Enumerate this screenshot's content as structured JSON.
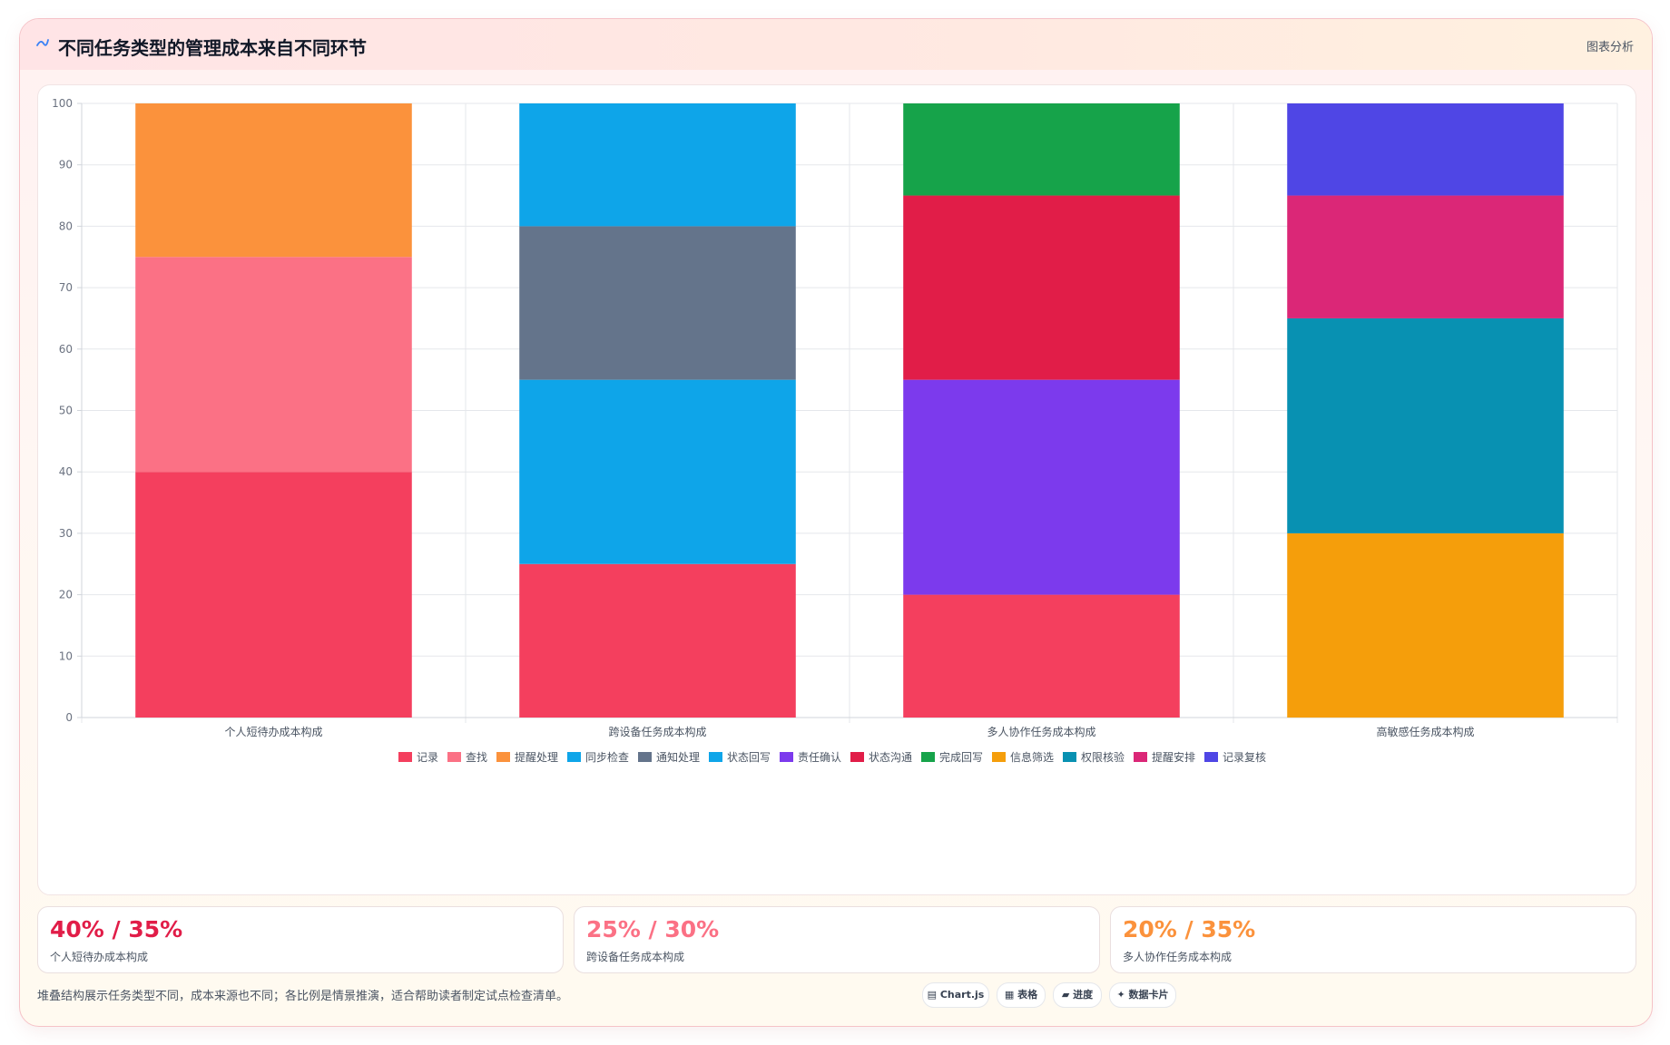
{
  "header": {
    "title": "不同任务类型的管理成本来自不同环节",
    "right_label": "图表分析"
  },
  "chart_data": {
    "type": "bar",
    "stacked": true,
    "categories": [
      "个人短待办成本构成",
      "跨设备任务成本构成",
      "多人协作任务成本构成",
      "高敏感任务成本构成"
    ],
    "ylim": [
      0,
      100
    ],
    "yticks": [
      0,
      10,
      20,
      30,
      40,
      50,
      60,
      70,
      80,
      90,
      100
    ],
    "grid": true,
    "legend_position": "bottom",
    "series": [
      {
        "name": "记录",
        "color": "#f43f5e",
        "values": [
          40,
          25,
          20,
          0
        ]
      },
      {
        "name": "查找",
        "color": "#fb7185",
        "values": [
          35,
          0,
          0,
          0
        ]
      },
      {
        "name": "提醒处理",
        "color": "#fb923c",
        "values": [
          25,
          0,
          0,
          0
        ]
      },
      {
        "name": "同步检查",
        "color": "#0ea5e9",
        "values": [
          0,
          30,
          0,
          0
        ]
      },
      {
        "name": "通知处理",
        "color": "#64748b",
        "values": [
          0,
          25,
          0,
          0
        ]
      },
      {
        "name": "状态回写",
        "color": "#0ea5e9",
        "values": [
          0,
          20,
          0,
          0
        ]
      },
      {
        "name": "责任确认",
        "color": "#7c3aed",
        "values": [
          0,
          0,
          35,
          0
        ]
      },
      {
        "name": "状态沟通",
        "color": "#e11d48",
        "values": [
          0,
          0,
          30,
          0
        ]
      },
      {
        "name": "完成回写",
        "color": "#16a34a",
        "values": [
          0,
          0,
          15,
          0
        ]
      },
      {
        "name": "信息筛选",
        "color": "#f59e0b",
        "values": [
          0,
          0,
          0,
          30
        ]
      },
      {
        "name": "权限核验",
        "color": "#0891b2",
        "values": [
          0,
          0,
          0,
          35
        ]
      },
      {
        "name": "提醒安排",
        "color": "#db2777",
        "values": [
          0,
          0,
          0,
          20
        ]
      },
      {
        "name": "记录复核",
        "color": "#4f46e5",
        "values": [
          0,
          0,
          0,
          15
        ]
      }
    ]
  },
  "stats": [
    {
      "value": "40% / 35%",
      "label": "个人短待办成本构成",
      "color": "#e11d48"
    },
    {
      "value": "25% / 30%",
      "label": "跨设备任务成本构成",
      "color": "#fb7185"
    },
    {
      "value": "20% / 35%",
      "label": "多人协作任务成本构成",
      "color": "#fb923c"
    }
  ],
  "footer": {
    "note": "堆叠结构展示任务类型不同，成本来源也不同；各比例是情景推演，适合帮助读者制定试点检查清单。"
  },
  "chips": [
    {
      "label": "▤ Chart.js",
      "icon": "chart-icon"
    },
    {
      "label": "▦ 表格",
      "icon": "table-icon"
    },
    {
      "label": "▰ 进度",
      "icon": "progress-icon"
    },
    {
      "label": "✦ 数据卡片",
      "icon": "card-icon"
    }
  ]
}
